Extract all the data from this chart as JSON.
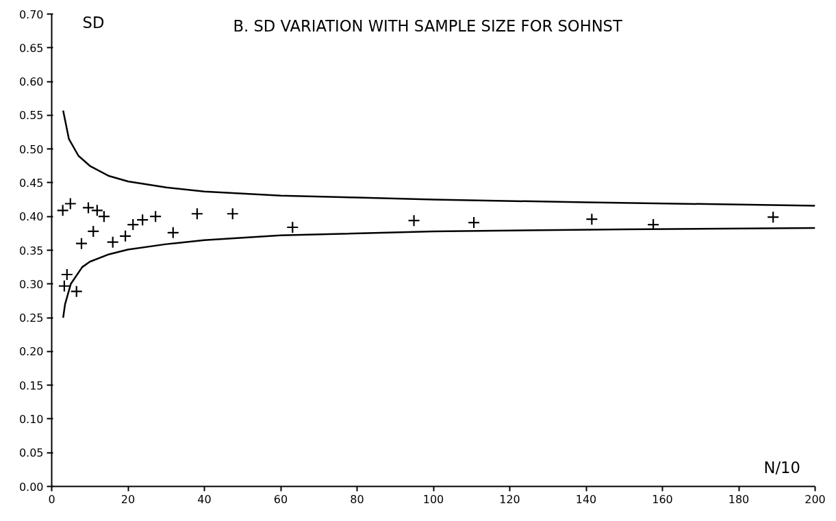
{
  "chart_data": {
    "type": "scatter",
    "title": "B.  SD VARIATION WITH SAMPLE SIZE FOR SOHNST",
    "xlabel": "N/10",
    "ylabel": "SD",
    "xlim": [
      0,
      200
    ],
    "ylim": [
      0,
      0.7
    ],
    "xticks": [
      0,
      20,
      40,
      60,
      80,
      100,
      120,
      140,
      160,
      180,
      200
    ],
    "yticks": [
      {
        "value": 0,
        "label": "0.00"
      },
      {
        "value": 0.05,
        "label": "0.05"
      },
      {
        "value": 0.1,
        "label": "0.10"
      },
      {
        "value": 0.15,
        "label": "0.15"
      },
      {
        "value": 0.2,
        "label": "0.20"
      },
      {
        "value": 0.25,
        "label": "0.25"
      },
      {
        "value": 0.3,
        "label": "0.30"
      },
      {
        "value": 0.35,
        "label": "0.35"
      },
      {
        "value": 0.4,
        "label": "0.40"
      },
      {
        "value": 0.45,
        "label": "0.45"
      },
      {
        "value": 0.5,
        "label": "0.50"
      },
      {
        "value": 0.55,
        "label": "0.55"
      },
      {
        "value": 0.6,
        "label": "0.60"
      },
      {
        "value": 0.65,
        "label": "0.65"
      },
      {
        "value": 0.7,
        "label": "0.70"
      }
    ],
    "grid": false,
    "series": [
      {
        "marker": "cross",
        "color": "#000000",
        "x": [
          2.9,
          4.9,
          9.6,
          11.9,
          13.7,
          7.8,
          10.9,
          16.0,
          19.3,
          21.3,
          23.8,
          27.2,
          31.8,
          38.1,
          47.4,
          4.0,
          3.3,
          6.5,
          63.1,
          94.9,
          110.6,
          141.5,
          157.6,
          189.0
        ],
        "values": [
          0.409,
          0.419,
          0.413,
          0.409,
          0.4,
          0.36,
          0.378,
          0.362,
          0.371,
          0.388,
          0.395,
          0.4,
          0.376,
          0.404,
          0.404,
          0.314,
          0.297,
          0.289,
          0.384,
          0.394,
          0.391,
          0.396,
          0.388,
          0.399
        ]
      },
      {
        "type": "line",
        "color": "#000000",
        "line_style": "solid",
        "x": [
          3,
          4.5,
          7,
          10,
          15,
          20,
          30,
          40,
          60,
          80,
          100,
          140,
          200
        ],
        "values": [
          0.557,
          0.515,
          0.49,
          0.475,
          0.46,
          0.452,
          0.443,
          0.437,
          0.431,
          0.428,
          0.425,
          0.421,
          0.416
        ]
      },
      {
        "type": "line",
        "color": "#000000",
        "line_style": "solid",
        "x": [
          3,
          3.5,
          5,
          8,
          10,
          15,
          20,
          30,
          40,
          60,
          100,
          150,
          200
        ],
        "values": [
          0.25,
          0.27,
          0.3,
          0.325,
          0.333,
          0.344,
          0.351,
          0.359,
          0.365,
          0.372,
          0.378,
          0.381,
          0.383
        ]
      }
    ]
  }
}
